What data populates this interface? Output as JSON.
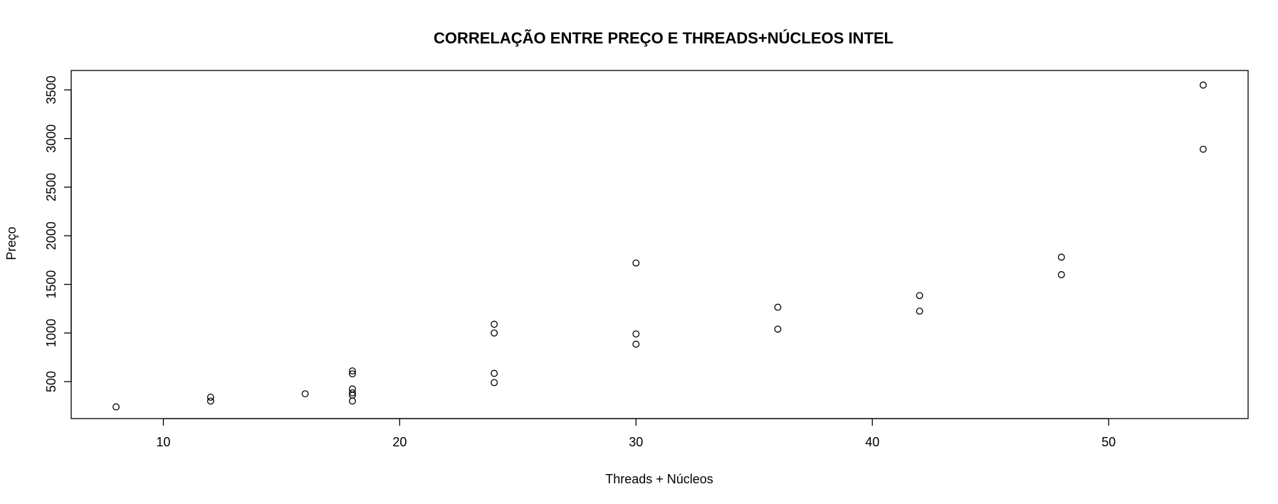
{
  "chart_data": {
    "type": "scatter",
    "title": "CORRELAÇÃO ENTRE PREÇO E THREADS+NÚCLEOS INTEL",
    "xlabel": "Threads + Núcleos",
    "ylabel": "Preço",
    "xlim": [
      6.1,
      55.9
    ],
    "ylim": [
      120,
      3700
    ],
    "x_ticks": [
      10,
      20,
      30,
      40,
      50
    ],
    "y_ticks": [
      500,
      1000,
      1500,
      2000,
      2500,
      3000,
      3500
    ],
    "grid": false,
    "legend": "none",
    "marker": "open-circle",
    "colors": {
      "point": "#000000",
      "axis": "#000000",
      "background": "#ffffff"
    },
    "points": [
      {
        "x": 8,
        "y": 240
      },
      {
        "x": 12,
        "y": 300
      },
      {
        "x": 12,
        "y": 340
      },
      {
        "x": 16,
        "y": 375
      },
      {
        "x": 18,
        "y": 300
      },
      {
        "x": 18,
        "y": 360
      },
      {
        "x": 18,
        "y": 385
      },
      {
        "x": 18,
        "y": 425
      },
      {
        "x": 18,
        "y": 580
      },
      {
        "x": 18,
        "y": 610
      },
      {
        "x": 24,
        "y": 490
      },
      {
        "x": 24,
        "y": 585
      },
      {
        "x": 24,
        "y": 1000
      },
      {
        "x": 24,
        "y": 1090
      },
      {
        "x": 30,
        "y": 885
      },
      {
        "x": 30,
        "y": 990
      },
      {
        "x": 30,
        "y": 1720
      },
      {
        "x": 36,
        "y": 1040
      },
      {
        "x": 36,
        "y": 1265
      },
      {
        "x": 42,
        "y": 1225
      },
      {
        "x": 42,
        "y": 1385
      },
      {
        "x": 48,
        "y": 1600
      },
      {
        "x": 48,
        "y": 1780
      },
      {
        "x": 54,
        "y": 2890
      },
      {
        "x": 54,
        "y": 3550
      }
    ]
  }
}
